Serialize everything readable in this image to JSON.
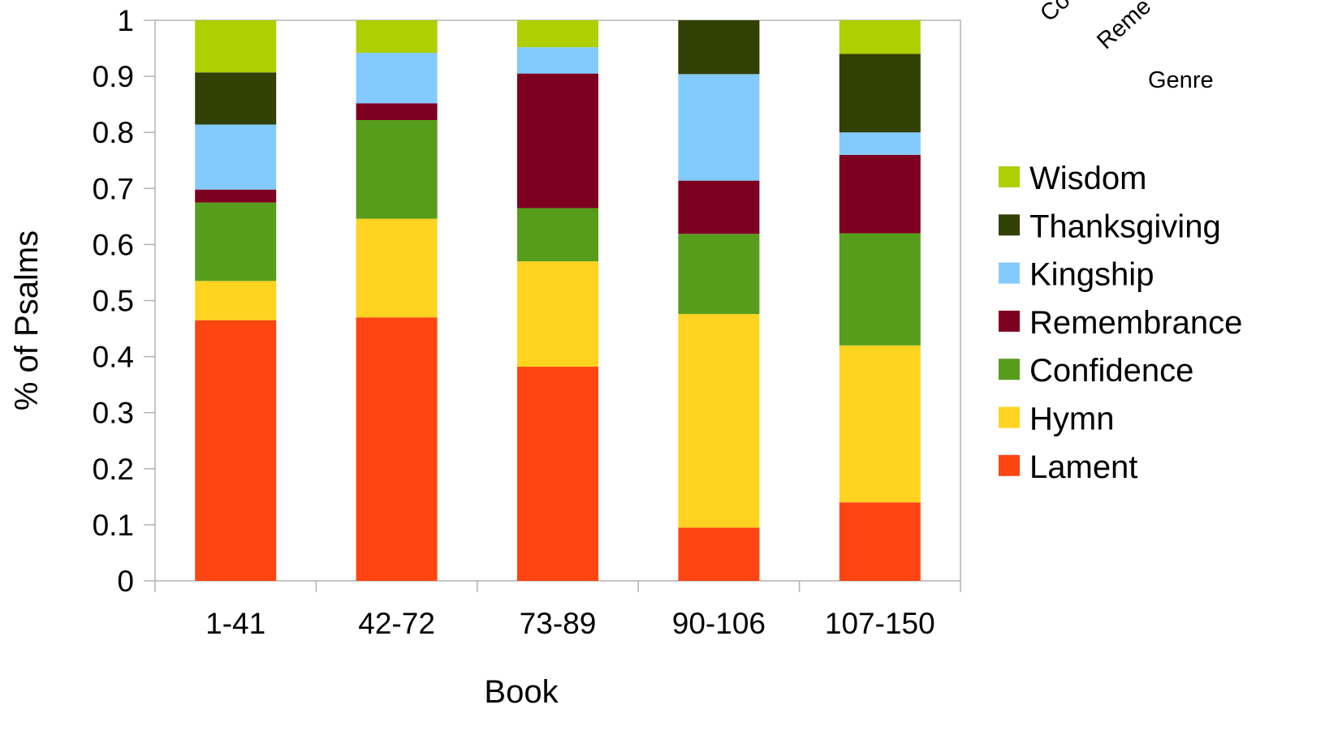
{
  "chart_data": {
    "type": "bar",
    "stacked": true,
    "xlabel": "Book",
    "ylabel": "% of Psalms",
    "ylim": [
      0,
      1
    ],
    "yticks": [
      0,
      0.1,
      0.2,
      0.3,
      0.4,
      0.5,
      0.6,
      0.7,
      0.8,
      0.9,
      1
    ],
    "ytick_labels": [
      "0",
      "0.1",
      "0.2",
      "0.3",
      "0.4",
      "0.5",
      "0.6",
      "0.7",
      "0.8",
      "0.9",
      "1"
    ],
    "grid": false,
    "legend_position": "right",
    "legend_title": "Genre",
    "categories": [
      "1-41",
      "42-72",
      "73-89",
      "90-106",
      "107-150"
    ],
    "series": [
      {
        "name": "Lament",
        "color": "#ff4511",
        "values": [
          0.465,
          0.47,
          0.382,
          0.095,
          0.14
        ]
      },
      {
        "name": "Hymn",
        "color": "#ffd320",
        "values": [
          0.07,
          0.176,
          0.188,
          0.381,
          0.28
        ]
      },
      {
        "name": "Confidence",
        "color": "#579d1c",
        "values": [
          0.14,
          0.176,
          0.095,
          0.143,
          0.2
        ]
      },
      {
        "name": "Remembrance",
        "color": "#7e0021",
        "values": [
          0.023,
          0.03,
          0.24,
          0.095,
          0.14
        ]
      },
      {
        "name": "Kingship",
        "color": "#83caff",
        "values": [
          0.116,
          0.09,
          0.047,
          0.19,
          0.04
        ]
      },
      {
        "name": "Thanksgiving",
        "color": "#314004",
        "values": [
          0.093,
          0.0,
          0.0,
          0.096,
          0.14
        ]
      },
      {
        "name": "Wisdom",
        "color": "#aecf00",
        "values": [
          0.093,
          0.058,
          0.048,
          0.0,
          0.06
        ]
      }
    ],
    "cropped_corner_text": [
      "Co",
      "Reme"
    ]
  }
}
